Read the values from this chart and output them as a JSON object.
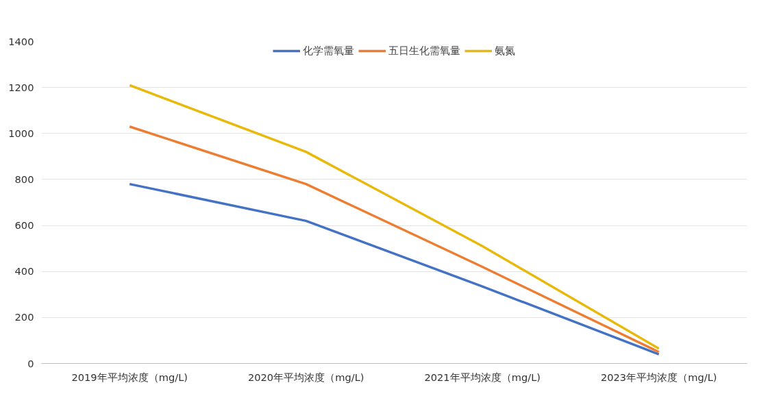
{
  "chart_data": {
    "type": "line",
    "categories": [
      "2019年平均浓度（mg/L)",
      "2020年平均浓度（mg/L)",
      "2021年平均浓度（mg/L)",
      "2023年平均浓度（mg/L)"
    ],
    "series": [
      {
        "name": "化学需氧量",
        "color": "#4472c4",
        "values": [
          780,
          620,
          335,
          40
        ]
      },
      {
        "name": "五日生化需氧量",
        "color": "#ed7d31",
        "values": [
          1030,
          780,
          420,
          50
        ]
      },
      {
        "name": "氨氮",
        "color": "#e8b90a",
        "values": [
          1210,
          920,
          510,
          65
        ]
      }
    ],
    "ylim": [
      0,
      1400
    ],
    "yticks": [
      0,
      200,
      400,
      600,
      800,
      1000,
      1200,
      1400
    ],
    "grid": "y",
    "legend": "top",
    "marker": "none",
    "line_style": "solid"
  }
}
